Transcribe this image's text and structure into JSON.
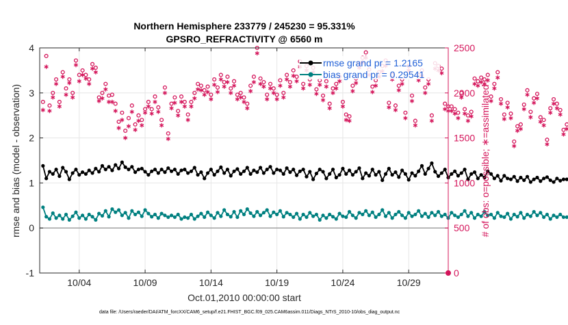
{
  "chart_data": {
    "type": "line",
    "title_line1": "Northern Hemisphere 233779 / 245230 = 95.331%",
    "title_line2": "GPSRO_REFRACTIVITY @ 6560 m",
    "xlabel": "Oct.01,2010 00:00:00 start",
    "ylabel_left": "rmse and bias (model - observation)",
    "ylabel_right": "# of obs: o=possible; ∗=assimilated",
    "footer": "data file: /Users/raeder/DAI/ATM_forcXX/CAM6_setup/f.e21.FHIST_BGC.f09_025.CAM6assim.011/Diags_NTrS_2010-10/obs_diag_output.nc",
    "xlim": [
      1,
      32
    ],
    "ylim_left": [
      -1,
      4
    ],
    "ylim_right": [
      0,
      2500
    ],
    "grid": true,
    "legend_position": "top-right",
    "x_ticks": [
      {
        "x": 4,
        "label": "10/04"
      },
      {
        "x": 9,
        "label": "10/09"
      },
      {
        "x": 14,
        "label": "10/14"
      },
      {
        "x": 19,
        "label": "10/19"
      },
      {
        "x": 24,
        "label": "10/24"
      },
      {
        "x": 29,
        "label": "10/29"
      }
    ],
    "y_ticks_left": [
      {
        "v": -1,
        "label": "-1"
      },
      {
        "v": 0,
        "label": "0"
      },
      {
        "v": 1,
        "label": "1"
      },
      {
        "v": 2,
        "label": "2"
      },
      {
        "v": 3,
        "label": "3"
      },
      {
        "v": 4,
        "label": "4"
      }
    ],
    "y_ticks_right": [
      {
        "v": 0,
        "label": "0"
      },
      {
        "v": 500,
        "label": "500"
      },
      {
        "v": 1000,
        "label": "1000"
      },
      {
        "v": 1500,
        "label": "1500"
      },
      {
        "v": 2000,
        "label": "2000"
      },
      {
        "v": 2500,
        "label": "2500"
      }
    ],
    "colors": {
      "rmse": "#000000",
      "bias": "#008080",
      "obs": "#d4145a",
      "zero_line": "#a0a0a0",
      "grid": "#e6e6e6",
      "legend_text": "#1f5fd6"
    },
    "series": [
      {
        "name": "rmse grand pr = 1.2165",
        "axis": "left",
        "marker": "filled-circle",
        "x_start": 1.25,
        "x_step": 0.25,
        "values": [
          1.38,
          1.1,
          1.25,
          1.2,
          1.3,
          1.15,
          1.34,
          1.25,
          1.08,
          1.22,
          1.3,
          1.18,
          1.24,
          1.2,
          1.28,
          1.22,
          1.32,
          1.25,
          1.38,
          1.3,
          1.36,
          1.28,
          1.4,
          1.32,
          1.46,
          1.35,
          1.3,
          1.36,
          1.24,
          1.3,
          1.32,
          1.25,
          1.18,
          1.26,
          1.3,
          1.22,
          1.3,
          1.24,
          1.33,
          1.26,
          1.3,
          1.2,
          1.28,
          1.3,
          1.22,
          1.26,
          1.34,
          1.18,
          1.24,
          1.1,
          1.22,
          1.3,
          1.18,
          1.26,
          1.35,
          1.22,
          1.3,
          1.16,
          1.26,
          1.31,
          1.2,
          1.26,
          1.34,
          1.2,
          1.28,
          1.24,
          1.34,
          1.22,
          1.3,
          1.36,
          1.22,
          1.3,
          1.28,
          1.2,
          1.33,
          1.24,
          1.3,
          1.17,
          1.26,
          1.3,
          1.14,
          1.25,
          1.08,
          1.21,
          1.3,
          1.25,
          1.1,
          1.2,
          1.3,
          1.12,
          1.18,
          1.32,
          1.2,
          1.28,
          1.18,
          1.25,
          1.33,
          1.1,
          1.22,
          1.16,
          1.3,
          1.18,
          1.25,
          1.06,
          1.2,
          1.32,
          1.18,
          1.24,
          1.13,
          1.28,
          1.2,
          1.07,
          1.22,
          1.16,
          1.26,
          1.38,
          1.2,
          1.32,
          1.44,
          1.25,
          1.15,
          1.22,
          1.3,
          1.12,
          1.2,
          1.26,
          1.16,
          1.22,
          1.3,
          1.08,
          1.2,
          1.24,
          1.1,
          1.18,
          1.12,
          1.26,
          1.2,
          1.1,
          1.16,
          1.05,
          1.16,
          1.1,
          1.08,
          1.14,
          1.04,
          1.12,
          1.06,
          1.14,
          1.02,
          1.08,
          1.12,
          1.04,
          1.1,
          1.13,
          1.06,
          1.02,
          1.1,
          1.05,
          1.08,
          1.08,
          1.08,
          1.08
        ]
      },
      {
        "name": "bias grand pr = 0.29541",
        "axis": "left",
        "marker": "filled-circle",
        "x_start": 1.25,
        "x_step": 0.25,
        "values": [
          0.46,
          0.25,
          0.2,
          0.33,
          0.22,
          0.28,
          0.2,
          0.3,
          0.18,
          0.26,
          0.35,
          0.22,
          0.28,
          0.2,
          0.3,
          0.25,
          0.18,
          0.32,
          0.27,
          0.38,
          0.25,
          0.42,
          0.35,
          0.4,
          0.28,
          0.34,
          0.22,
          0.38,
          0.3,
          0.35,
          0.26,
          0.4,
          0.32,
          0.25,
          0.3,
          0.22,
          0.32,
          0.28,
          0.24,
          0.28,
          0.24,
          0.3,
          0.2,
          0.24,
          0.22,
          0.3,
          0.2,
          0.26,
          0.32,
          0.24,
          0.35,
          0.28,
          0.22,
          0.34,
          0.26,
          0.4,
          0.3,
          0.25,
          0.36,
          0.24,
          0.38,
          0.3,
          0.42,
          0.33,
          0.26,
          0.36,
          0.28,
          0.34,
          0.4,
          0.26,
          0.35,
          0.3,
          0.38,
          0.25,
          0.34,
          0.3,
          0.24,
          0.32,
          0.2,
          0.3,
          0.24,
          0.34,
          0.26,
          0.3,
          0.18,
          0.28,
          0.22,
          0.3,
          0.25,
          0.2,
          0.32,
          0.26,
          0.24,
          0.36,
          0.28,
          0.22,
          0.34,
          0.3,
          0.38,
          0.28,
          0.35,
          0.24,
          0.3,
          0.4,
          0.26,
          0.34,
          0.22,
          0.3,
          0.36,
          0.28,
          0.22,
          0.34,
          0.26,
          0.3,
          0.38,
          0.26,
          0.32,
          0.24,
          0.34,
          0.28,
          0.36,
          0.26,
          0.3,
          0.22,
          0.34,
          0.28,
          0.24,
          0.3,
          0.38,
          0.26,
          0.34,
          0.22,
          0.3,
          0.26,
          0.36,
          0.28,
          0.3,
          0.22,
          0.34,
          0.26,
          0.24,
          0.32,
          0.2,
          0.3,
          0.25,
          0.34,
          0.22,
          0.3,
          0.26,
          0.36,
          0.28,
          0.34,
          0.24,
          0.3,
          0.2,
          0.28,
          0.24,
          0.3,
          0.24,
          0.24,
          0.24,
          0.24
        ]
      },
      {
        "name": "possible",
        "axis": "right",
        "marker": "open-circle",
        "x_start": 1.25,
        "x_step": 0.25,
        "values": [
          1900,
          2410,
          1860,
          2000,
          2150,
          1900,
          2230,
          2050,
          2150,
          2000,
          2360,
          2200,
          2250,
          2200,
          2150,
          2320,
          2280,
          1950,
          2000,
          2100,
          1970,
          1980,
          1880,
          1680,
          1780,
          1580,
          1720,
          1860,
          1650,
          1750,
          1700,
          1820,
          1900,
          1820,
          1960,
          1840,
          1700,
          2060,
          1550,
          1880,
          1950,
          1800,
          1960,
          1900,
          1760,
          1900,
          2000,
          2100,
          2080,
          2030,
          2070,
          1980,
          2150,
          2060,
          2200,
          2120,
          2180,
          2050,
          2130,
          1980,
          2000,
          1950,
          1880,
          2080,
          2180,
          2500,
          2160,
          2120,
          1980,
          2100,
          2050,
          1980,
          2140,
          2000,
          2200,
          2120,
          2250,
          2180,
          2350,
          2100,
          2300,
          2150,
          2280,
          2040,
          2140,
          1970,
          2130,
          1880,
          2050,
          2100,
          2180,
          1900,
          1760,
          1740,
          2080,
          2160,
          2330,
          2390,
          2450,
          2260,
          2070,
          2140,
          2230,
          2300,
          2360,
          1890,
          2200,
          1860,
          2080,
          2150,
          1780,
          2300,
          1970,
          1690,
          2200,
          2250,
          2060,
          2150,
          1750,
          2330,
          2300,
          2270,
          1880,
          1850,
          1850,
          1820,
          1780,
          2000,
          1820,
          1750,
          1790,
          2160,
          2130,
          2170,
          2150,
          2200,
          1960,
          2100,
          2230,
          1930,
          1760,
          1890,
          1770,
          1460,
          1630,
          1650,
          1870,
          2030,
          1790,
          1940,
          1990,
          1730,
          1700,
          1480,
          1830,
          1930,
          1880,
          1810,
          1590,
          1650,
          1920,
          1900,
          1650,
          1800,
          1660,
          1950
        ]
      },
      {
        "name": "assimilated",
        "axis": "right",
        "marker": "asterisk",
        "x_start": 1.25,
        "x_step": 0.25,
        "values": [
          1810,
          2290,
          1800,
          1950,
          2100,
          1850,
          2180,
          1980,
          2110,
          1950,
          2310,
          2130,
          2200,
          2160,
          2100,
          2270,
          2230,
          1910,
          1940,
          2040,
          1900,
          1900,
          1800,
          1610,
          1700,
          1500,
          1630,
          1790,
          1590,
          1690,
          1640,
          1780,
          1850,
          1770,
          1900,
          1790,
          1640,
          2000,
          1490,
          1830,
          1890,
          1750,
          1900,
          1850,
          1700,
          1850,
          1940,
          2040,
          2030,
          1980,
          2010,
          1930,
          2090,
          2010,
          2150,
          2070,
          2120,
          2000,
          2080,
          1930,
          1950,
          1900,
          1830,
          2020,
          2120,
          2440,
          2100,
          2070,
          1930,
          2050,
          2000,
          1930,
          2080,
          1950,
          2150,
          2070,
          2190,
          2130,
          2290,
          2050,
          2250,
          2090,
          2230,
          1990,
          2090,
          1920,
          2070,
          1830,
          2000,
          2050,
          2130,
          1850,
          1700,
          1690,
          2020,
          2110,
          2280,
          2340,
          2390,
          2200,
          2010,
          2080,
          2180,
          2240,
          2300,
          1840,
          2150,
          1810,
          2030,
          2100,
          1720,
          2250,
          1910,
          1640,
          2140,
          2190,
          2000,
          2100,
          1690,
          2270,
          2250,
          2220,
          1820,
          1800,
          1800,
          1770,
          1720,
          1950,
          1770,
          1690,
          1740,
          2100,
          2080,
          2120,
          2100,
          2140,
          1910,
          2050,
          2170,
          1880,
          1710,
          1840,
          1720,
          1410,
          1580,
          1600,
          1820,
          1980,
          1730,
          1890,
          1940,
          1680,
          1640,
          1430,
          1780,
          1880,
          1830,
          1760,
          1540,
          1600,
          1870,
          1850,
          1600,
          1750,
          1610,
          1900
        ]
      }
    ]
  }
}
